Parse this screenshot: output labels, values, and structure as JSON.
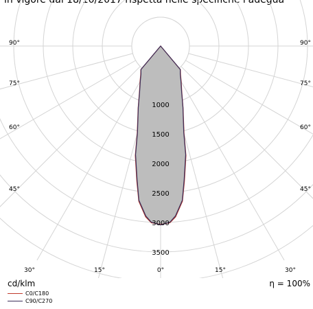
{
  "header_text": "in vigore dal 18/10/2017 rispetta nelle specifiche l'adegua",
  "chart_data": {
    "type": "polar",
    "unit_label": "cd/klm",
    "efficiency_label": "η = 100%",
    "radial_ticks": [
      1000,
      1500,
      2000,
      2500,
      3000,
      3500
    ],
    "radial_tick_labels": [
      "1000",
      "1500",
      "2000",
      "2500",
      "3000",
      "3500"
    ],
    "angle_labels_left": [
      "90°",
      "75°",
      "60°",
      "45°",
      "30°",
      "15°"
    ],
    "angle_labels_right": [
      "90°",
      "75°",
      "60°",
      "45°",
      "30°",
      "15°"
    ],
    "angle_label_bottom": "0°",
    "series": [
      {
        "name": "C0/C180",
        "color": "#c0392b",
        "points": [
          [
            0,
            3040
          ],
          [
            3,
            3010
          ],
          [
            5,
            2900
          ],
          [
            8,
            2600
          ],
          [
            10,
            2200
          ],
          [
            13,
            1700
          ],
          [
            15,
            1250
          ],
          [
            20,
            750
          ],
          [
            25,
            430
          ],
          [
            30,
            250
          ],
          [
            35,
            120
          ],
          [
            40,
            40
          ],
          [
            45,
            0
          ]
        ]
      },
      {
        "name": "C90/C270",
        "color": "#3b2e5a",
        "points": [
          [
            0,
            3050
          ],
          [
            3,
            3000
          ],
          [
            5,
            2880
          ],
          [
            8,
            2580
          ],
          [
            10,
            2170
          ],
          [
            13,
            1680
          ],
          [
            15,
            1230
          ],
          [
            20,
            740
          ],
          [
            25,
            420
          ],
          [
            30,
            240
          ],
          [
            35,
            110
          ],
          [
            40,
            35
          ],
          [
            45,
            0
          ]
        ]
      }
    ],
    "fill_color": "#bdbdbd",
    "grid": true
  },
  "legend": [
    {
      "label": "C0/C180",
      "color": "#c0392b"
    },
    {
      "label": "C90/C270",
      "color": "#3b2e5a"
    }
  ]
}
